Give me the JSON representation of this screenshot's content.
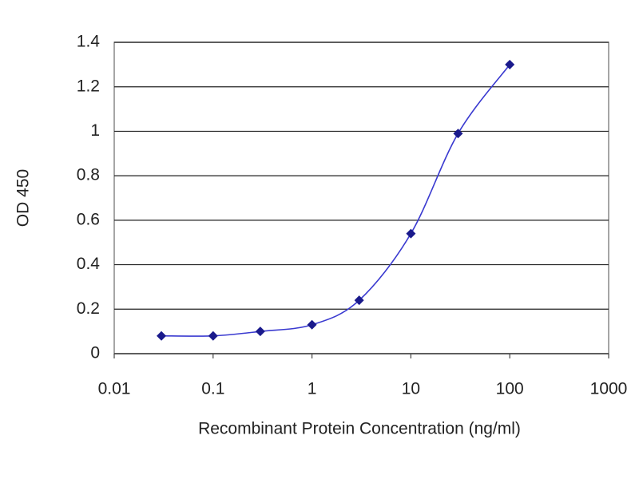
{
  "chart_data": {
    "type": "line",
    "x_label": "Recombinant Protein Concentration (ng/ml)",
    "y_label": "OD 450",
    "x": [
      0.03,
      0.1,
      0.3,
      1,
      3,
      10,
      30,
      100
    ],
    "series": [
      {
        "color": "#1a1a8c",
        "values": [
          0.08,
          0.08,
          0.1,
          0.13,
          0.24,
          0.54,
          0.99,
          1.3
        ]
      }
    ],
    "xscale": "log",
    "xlim": [
      0.01,
      1000
    ],
    "xticks": [
      0.01,
      0.1,
      1,
      10,
      100,
      1000
    ],
    "ylim": [
      0,
      1.4
    ],
    "yticks": [
      0,
      0.2,
      0.4,
      0.6,
      0.8,
      1,
      1.2,
      1.4
    ],
    "grid": true
  }
}
